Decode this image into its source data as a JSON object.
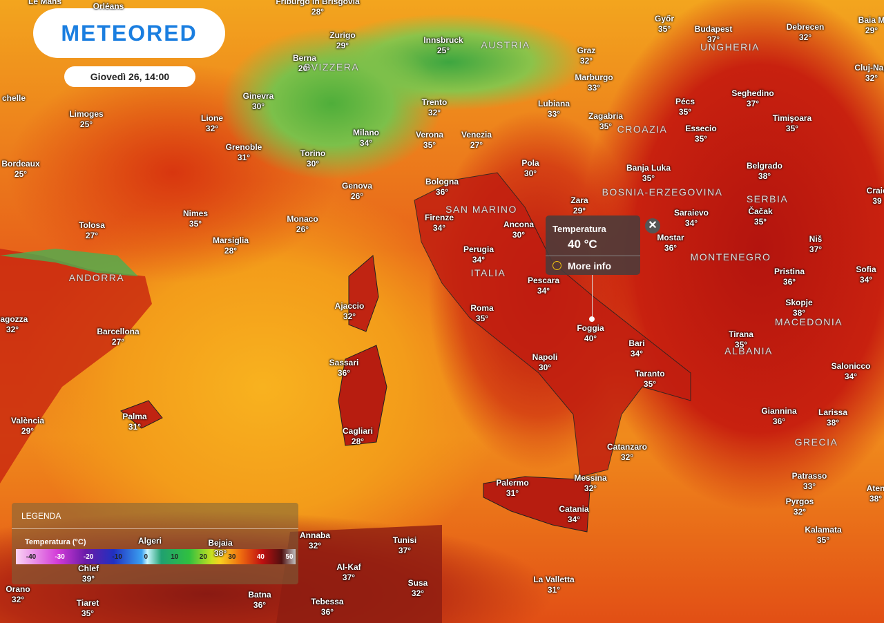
{
  "header": {
    "logo": "METEORED",
    "time": "Giovedì 26, 14:00"
  },
  "cities": [
    {
      "name": "Le Mans",
      "temp": null
    },
    {
      "name": "Orléans",
      "temp": null
    },
    {
      "name": "Friburgo in Brisgovia",
      "temp": "28°"
    },
    {
      "name": "Zurigo",
      "temp": "29°"
    },
    {
      "name": "Innsbruck",
      "temp": "25°"
    },
    {
      "name": "Graz",
      "temp": "32°"
    },
    {
      "name": "Győr",
      "temp": "35°"
    },
    {
      "name": "Budapest",
      "temp": "37°"
    },
    {
      "name": "Debrecen",
      "temp": "32°"
    },
    {
      "name": "Baia M",
      "temp": "29°"
    },
    {
      "name": "Berna",
      "temp": "26°"
    },
    {
      "name": "Cluj-Nap",
      "temp": "32°"
    },
    {
      "name": "Marburgo",
      "temp": "33°"
    },
    {
      "name": "chelle",
      "temp": null
    },
    {
      "name": "Ginevra",
      "temp": "30°"
    },
    {
      "name": "Trento",
      "temp": "32°"
    },
    {
      "name": "Lubiana",
      "temp": "33°"
    },
    {
      "name": "Pécs",
      "temp": "35°"
    },
    {
      "name": "Seghedino",
      "temp": "37°"
    },
    {
      "name": "Limoges",
      "temp": "25°"
    },
    {
      "name": "Lione",
      "temp": "32°"
    },
    {
      "name": "Zagabria",
      "temp": "35°"
    },
    {
      "name": "Timişoara",
      "temp": "35°"
    },
    {
      "name": "Essecio",
      "temp": "35°"
    },
    {
      "name": "Milano",
      "temp": "34°"
    },
    {
      "name": "Verona",
      "temp": "35°"
    },
    {
      "name": "Venezia",
      "temp": "27°"
    },
    {
      "name": "Bordeaux",
      "temp": "25°"
    },
    {
      "name": "Grenoble",
      "temp": "31°"
    },
    {
      "name": "Torino",
      "temp": "30°"
    },
    {
      "name": "Pola",
      "temp": "30°"
    },
    {
      "name": "Banja Luka",
      "temp": "35°"
    },
    {
      "name": "Belgrado",
      "temp": "38°"
    },
    {
      "name": "Genova",
      "temp": "26°"
    },
    {
      "name": "Bologna",
      "temp": "36°"
    },
    {
      "name": "Craio",
      "temp": "39"
    },
    {
      "name": "Zara",
      "temp": "29°"
    },
    {
      "name": "Nimes",
      "temp": "35°"
    },
    {
      "name": "Firenze",
      "temp": "34°"
    },
    {
      "name": "Ancona",
      "temp": "30°"
    },
    {
      "name": "Saraievo",
      "temp": "34°"
    },
    {
      "name": "Čačak",
      "temp": "35°"
    },
    {
      "name": "Monaco",
      "temp": "26°"
    },
    {
      "name": "Tolosa",
      "temp": "27°"
    },
    {
      "name": "Marsiglia",
      "temp": "28°"
    },
    {
      "name": "Mostar",
      "temp": "36°"
    },
    {
      "name": "Niš",
      "temp": "37°"
    },
    {
      "name": "Perugia",
      "temp": "34°"
    },
    {
      "name": "Pristina",
      "temp": "36°"
    },
    {
      "name": "Sofia",
      "temp": "34°"
    },
    {
      "name": "Pescara",
      "temp": "34°"
    },
    {
      "name": "Ajaccio",
      "temp": "32°"
    },
    {
      "name": "Roma",
      "temp": "35°"
    },
    {
      "name": "Skopje",
      "temp": "38°"
    },
    {
      "name": "ragozza",
      "temp": "32°"
    },
    {
      "name": "Foggia",
      "temp": "40°"
    },
    {
      "name": "Barcellona",
      "temp": "27°"
    },
    {
      "name": "Tirana",
      "temp": "35°"
    },
    {
      "name": "Bari",
      "temp": "34°"
    },
    {
      "name": "Napoli",
      "temp": "30°"
    },
    {
      "name": "Sassari",
      "temp": "36°"
    },
    {
      "name": "Salonicco",
      "temp": "34°"
    },
    {
      "name": "Taranto",
      "temp": "35°"
    },
    {
      "name": "Giannina",
      "temp": "36°"
    },
    {
      "name": "Larissa",
      "temp": "38°"
    },
    {
      "name": "València",
      "temp": "29°"
    },
    {
      "name": "Palma",
      "temp": "31°"
    },
    {
      "name": "Cagliari",
      "temp": "28°"
    },
    {
      "name": "Catanzaro",
      "temp": "32°"
    },
    {
      "name": "Patrasso",
      "temp": "33°"
    },
    {
      "name": "Palermo",
      "temp": "31°"
    },
    {
      "name": "Messina",
      "temp": "32°"
    },
    {
      "name": "Aten",
      "temp": "38°"
    },
    {
      "name": "Pyrgos",
      "temp": "32°"
    },
    {
      "name": "Catania",
      "temp": "34°"
    },
    {
      "name": "Kalamata",
      "temp": "35°"
    },
    {
      "name": "Annaba",
      "temp": "32°"
    },
    {
      "name": "Tunisi",
      "temp": "37°"
    },
    {
      "name": "Al-Kaf",
      "temp": "37°"
    },
    {
      "name": "Susa",
      "temp": "32°"
    },
    {
      "name": "La Valletta",
      "temp": "31°"
    },
    {
      "name": "Orano",
      "temp": "32°"
    },
    {
      "name": "Batna",
      "temp": "36°"
    },
    {
      "name": "Tiaret",
      "temp": "35°"
    },
    {
      "name": "Tebessa",
      "temp": "36°"
    },
    {
      "name": "Chlef",
      "temp": "39°"
    },
    {
      "name": "Algeri",
      "temp": null
    },
    {
      "name": "Bejaia",
      "temp": "38°"
    }
  ],
  "countries": [
    "AUSTRIA",
    "UNGHERIA",
    "SVIZZERA",
    "CROAZIA",
    "BOSNIA-ERZEGOVINA",
    "SERBIA",
    "SAN MARINO",
    "MONTENEGRO",
    "ITALIA",
    "ANDORRA",
    "MACEDONIA",
    "ALBANIA",
    "GRECIA"
  ],
  "popup": {
    "title": "Temperatura",
    "value": "40 °C",
    "link": "More info"
  },
  "legend": {
    "title": "LEGENDA",
    "subtitle": "Temperatura (°C)",
    "ticks": [
      -40,
      -30,
      -20,
      -10,
      0,
      10,
      20,
      30,
      40,
      50
    ]
  }
}
